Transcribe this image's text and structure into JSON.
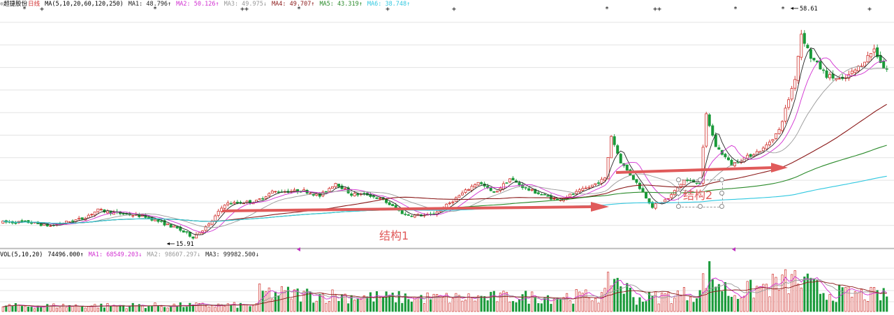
{
  "header": {
    "stock_name": "超捷股份",
    "period": "日线",
    "ma_label": "MA(5,10,20,60,120,250)",
    "ma1": "MA1: 48.796↑",
    "ma2": "MA2: 50.126↑",
    "ma3": "MA3: 49.975↓",
    "ma4": "MA4: 49.707↑",
    "ma5": "MA5: 43.319↑",
    "ma6": "MA6: 38.748↑"
  },
  "volume_header": {
    "label": "VOL(5,10,20)",
    "vol": "74496.000↑",
    "ma1": "MA1: 68549.203↓",
    "ma2": "MA2: 98607.297↓",
    "ma3": "MA3: 99982.500↓"
  },
  "annotations": {
    "structure1": "结构1",
    "structure2": "结构2",
    "low_price": "15.91",
    "high_price": "58.61"
  },
  "colors": {
    "up_candle": "#d0302c",
    "down_candle": "#1a9a3a",
    "ma1": "#222222",
    "ma2": "#d12fd1",
    "ma3": "#999999",
    "ma4": "#8b1a1a",
    "ma5": "#2a8a2a",
    "ma6": "#30c8e0",
    "arrow": "#e05a5a"
  },
  "chart_data": {
    "type": "candlestick",
    "ylim": [
      15,
      60
    ],
    "x_count": 280,
    "price_anchors": [
      [
        0,
        19.5
      ],
      [
        8,
        19.5
      ],
      [
        15,
        18.8
      ],
      [
        25,
        20.2
      ],
      [
        30,
        21.8
      ],
      [
        35,
        21.3
      ],
      [
        45,
        20.6
      ],
      [
        55,
        18.3
      ],
      [
        60,
        16.7
      ],
      [
        65,
        19.0
      ],
      [
        70,
        23.0
      ],
      [
        80,
        23.5
      ],
      [
        85,
        25.3
      ],
      [
        95,
        25.5
      ],
      [
        100,
        24.5
      ],
      [
        105,
        27.0
      ],
      [
        110,
        24.8
      ],
      [
        115,
        24.8
      ],
      [
        120,
        23.7
      ],
      [
        127,
        20.9
      ],
      [
        135,
        20.8
      ],
      [
        140,
        22.7
      ],
      [
        145,
        25.0
      ],
      [
        150,
        27.2
      ],
      [
        155,
        25.0
      ],
      [
        160,
        27.8
      ],
      [
        165,
        25.9
      ],
      [
        170,
        24.8
      ],
      [
        175,
        23.7
      ],
      [
        180,
        24.9
      ],
      [
        185,
        26.2
      ],
      [
        190,
        27.8
      ],
      [
        192,
        36.0
      ],
      [
        195,
        31.0
      ],
      [
        200,
        27.0
      ],
      [
        205,
        22.5
      ],
      [
        210,
        24.0
      ],
      [
        215,
        27.5
      ],
      [
        220,
        27.0
      ],
      [
        222,
        40.0
      ],
      [
        225,
        34.0
      ],
      [
        230,
        30.5
      ],
      [
        235,
        32.0
      ],
      [
        240,
        33.5
      ],
      [
        245,
        37.0
      ],
      [
        250,
        47.0
      ],
      [
        252,
        55.5
      ],
      [
        255,
        51.0
      ],
      [
        260,
        47.5
      ],
      [
        265,
        46.5
      ],
      [
        270,
        49.0
      ],
      [
        275,
        52.5
      ],
      [
        278,
        49.0
      ],
      [
        280,
        48.5
      ]
    ],
    "ma_lines": [
      {
        "name": "MA1",
        "color": "#222222"
      },
      {
        "name": "MA2",
        "color": "#d12fd1"
      },
      {
        "name": "MA3",
        "color": "#999999"
      },
      {
        "name": "MA4",
        "color": "#8b1a1a"
      },
      {
        "name": "MA5",
        "color": "#2a8a2a"
      },
      {
        "name": "MA6",
        "color": "#30c8e0"
      }
    ],
    "price_high": 58.61,
    "price_low": 15.91,
    "volume": {
      "ylim": [
        0,
        300000
      ],
      "anchors": [
        [
          0,
          35000
        ],
        [
          80,
          40000
        ],
        [
          81,
          120000
        ],
        [
          120,
          90000
        ],
        [
          140,
          85000
        ],
        [
          190,
          100000
        ],
        [
          192,
          240000
        ],
        [
          200,
          80000
        ],
        [
          220,
          120000
        ],
        [
          222,
          250000
        ],
        [
          230,
          110000
        ],
        [
          250,
          200000
        ],
        [
          260,
          120000
        ],
        [
          280,
          100000
        ]
      ]
    }
  }
}
